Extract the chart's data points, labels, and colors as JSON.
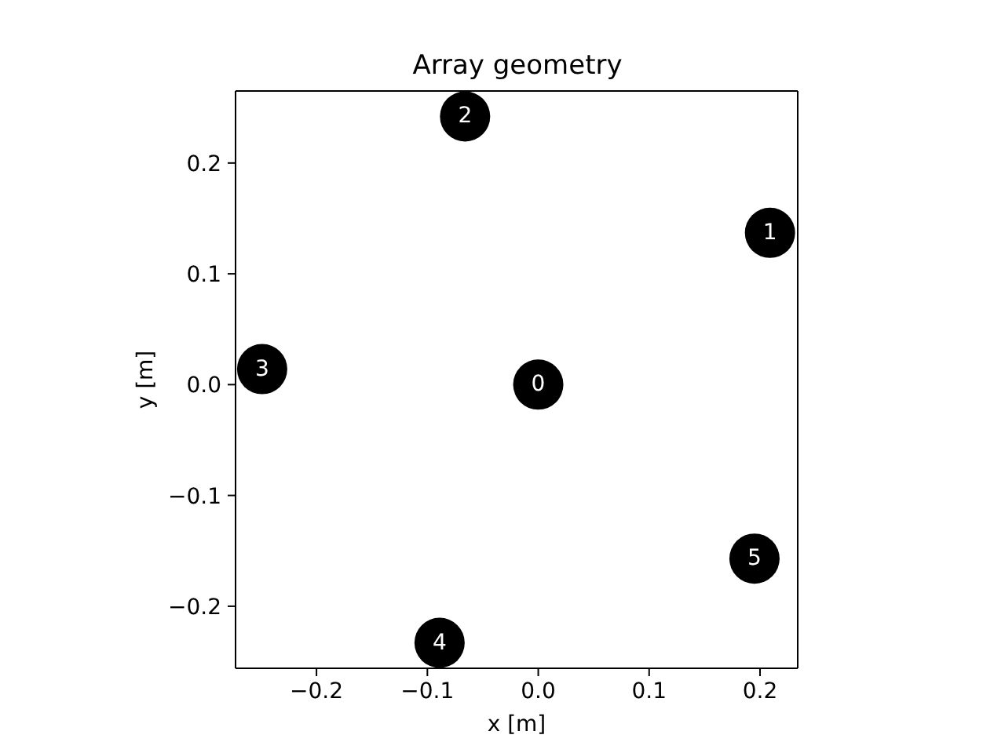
{
  "chart_data": {
    "type": "scatter",
    "title": "Array geometry",
    "xlabel": "x [m]",
    "ylabel": "y [m]",
    "x": [
      0,
      0.209,
      -0.066,
      -0.249,
      -0.089,
      0.195
    ],
    "values": [
      0,
      0.137,
      0.242,
      0.014,
      -0.233,
      -0.157
    ],
    "color": "#000000",
    "marker": "circle",
    "xlim": [
      -0.273,
      0.234
    ],
    "ylim": [
      -0.256,
      0.265
    ],
    "xticks": [
      {
        "value": -0.2,
        "label": "−0.2"
      },
      {
        "value": -0.1,
        "label": "−0.1"
      },
      {
        "value": 0,
        "label": "0.0"
      },
      0.1,
      0.2
    ],
    "yticks": [
      {
        "value": -0.2,
        "label": "−0.2"
      },
      {
        "value": -0.1,
        "label": "−0.1"
      },
      {
        "value": 0,
        "label": "0.0"
      },
      0.1,
      0.2
    ],
    "annotations": [
      {
        "text": "0",
        "x": 0,
        "y": 0
      },
      {
        "text": "1",
        "x": 0.209,
        "y": 0.137
      },
      {
        "text": "2",
        "x": -0.066,
        "y": 0.242
      },
      {
        "text": "3",
        "x": -0.249,
        "y": 0.014
      },
      {
        "text": "4",
        "x": -0.089,
        "y": -0.233
      },
      {
        "text": "5",
        "x": 0.195,
        "y": -0.157
      }
    ]
  }
}
